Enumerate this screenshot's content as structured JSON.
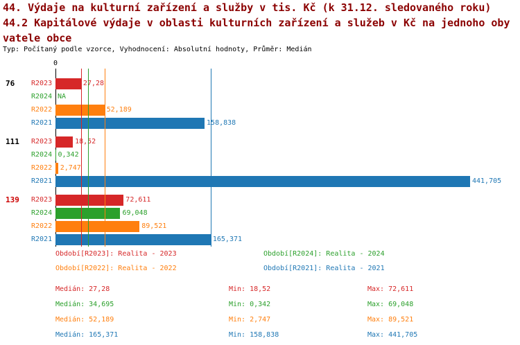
{
  "title": {
    "line1": "44. Výdaje na kulturní zařízení a služby v tis. Kč (k 31.12. sledovaného roku)",
    "line2": "44.2 Kapitálové výdaje v oblasti kulturních zařízení a služeb v Kč na jednoho oby",
    "line2_cont": "vatele obce",
    "meta": "Typ: Počítaný podle vzorce, Vyhodnocení: Absolutní hodnoty, Průměr: Medián"
  },
  "colors": {
    "R2023": "#d62728",
    "R2024": "#2ca02c",
    "R2022": "#ff7f0e",
    "R2021": "#1f77b4",
    "title": "#8b0000",
    "highlight_group_label": "#cc0000",
    "axis": "#000000"
  },
  "chart_data": {
    "type": "bar",
    "orientation": "horizontal",
    "x_origin_label": "0",
    "xmax": 441.705,
    "grid": "median-lines-only",
    "series_order": [
      "R2023",
      "R2024",
      "R2022",
      "R2021"
    ],
    "groups": [
      {
        "label": "76",
        "highlight": false,
        "bars": [
          {
            "series": "R2023",
            "value": 27.28,
            "label": "27,28"
          },
          {
            "series": "R2024",
            "value": null,
            "label": "NA"
          },
          {
            "series": "R2022",
            "value": 52.189,
            "label": "52,189"
          },
          {
            "series": "R2021",
            "value": 158.838,
            "label": "158,838"
          }
        ]
      },
      {
        "label": "111",
        "highlight": false,
        "bars": [
          {
            "series": "R2023",
            "value": 18.52,
            "label": "18,52"
          },
          {
            "series": "R2024",
            "value": 0.342,
            "label": "0,342"
          },
          {
            "series": "R2022",
            "value": 2.747,
            "label": "2,747"
          },
          {
            "series": "R2021",
            "value": 441.705,
            "label": "441,705"
          }
        ]
      },
      {
        "label": "139",
        "highlight": true,
        "bars": [
          {
            "series": "R2023",
            "value": 72.611,
            "label": "72,611"
          },
          {
            "series": "R2024",
            "value": 69.048,
            "label": "69,048"
          },
          {
            "series": "R2022",
            "value": 89.521,
            "label": "89,521"
          },
          {
            "series": "R2021",
            "value": 165.371,
            "label": "165,371"
          }
        ]
      }
    ],
    "median_lines": [
      {
        "series": "R2023",
        "value": 27.28
      },
      {
        "series": "R2024",
        "value": 34.695
      },
      {
        "series": "R2022",
        "value": 52.189
      },
      {
        "series": "R2021",
        "value": 165.371
      }
    ]
  },
  "legend": {
    "items": [
      {
        "series": "R2023",
        "text": "Období[R2023]: Realita - 2023"
      },
      {
        "series": "R2024",
        "text": "Období[R2024]: Realita - 2024"
      },
      {
        "series": "R2022",
        "text": "Období[R2022]: Realita - 2022"
      },
      {
        "series": "R2021",
        "text": "Období[R2021]: Realita - 2021"
      }
    ]
  },
  "stats": {
    "rows": [
      {
        "series": "R2023",
        "median": "Medián: 27,28",
        "min": "Min: 18,52",
        "max": "Max: 72,611"
      },
      {
        "series": "R2024",
        "median": "Medián: 34,695",
        "min": "Min: 0,342",
        "max": "Max: 69,048"
      },
      {
        "series": "R2022",
        "median": "Medián: 52,189",
        "min": "Min: 2,747",
        "max": "Max: 89,521"
      },
      {
        "series": "R2021",
        "median": "Medián: 165,371",
        "min": "Min: 158,838",
        "max": "Max: 441,705"
      }
    ]
  }
}
